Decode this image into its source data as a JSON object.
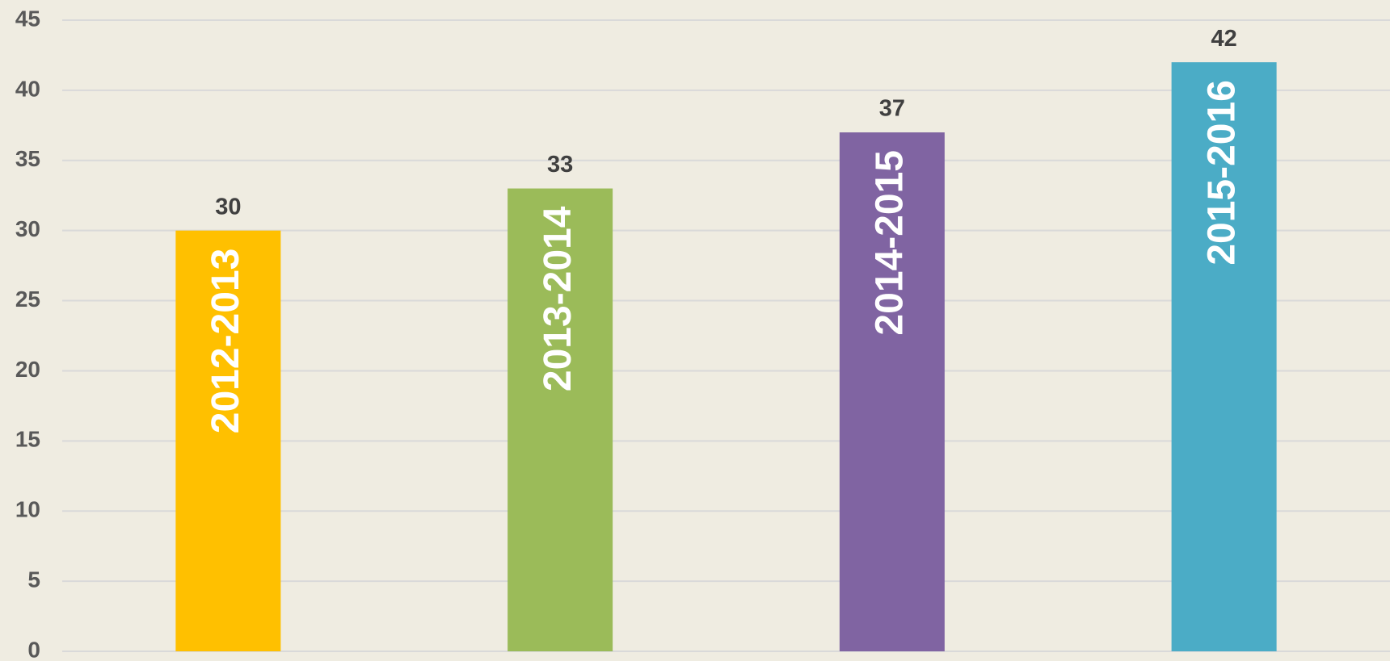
{
  "chart_data": {
    "type": "bar",
    "categories": [
      "2012-2013",
      "2013-2014",
      "2014-2015",
      "2015-2016"
    ],
    "values": [
      30,
      33,
      37,
      42
    ],
    "colors": [
      "#FFC000",
      "#9BBB59",
      "#8064A2",
      "#4BACC6"
    ],
    "ylim": [
      0,
      45
    ],
    "yticks": [
      0,
      5,
      10,
      15,
      20,
      25,
      30,
      35,
      40,
      45
    ],
    "grid": true
  }
}
